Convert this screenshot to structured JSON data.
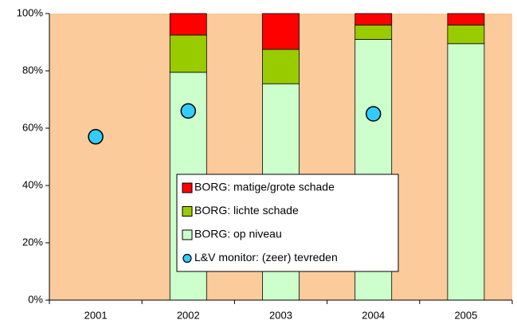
{
  "chart_data": {
    "type": "bar",
    "stacked": true,
    "categories": [
      "2001",
      "2002",
      "2003",
      "2004",
      "2005"
    ],
    "background": "#fbcb9b",
    "series": [
      {
        "name": "BORG: matige/grote schade",
        "type": "bar",
        "color": "#ff0000",
        "values": [
          null,
          7.5,
          12.5,
          4,
          4
        ]
      },
      {
        "name": "BORG: lichte schade",
        "type": "bar",
        "color": "#99cc00",
        "values": [
          null,
          13,
          12,
          5,
          6.5
        ]
      },
      {
        "name": "BORG: op niveau",
        "type": "bar",
        "color": "#ccffcc",
        "values": [
          null,
          79.5,
          75.5,
          91,
          89.5
        ]
      },
      {
        "name": "L&V monitor: (zeer) tevreden",
        "type": "scatter",
        "color": "#33ccff",
        "values": [
          57,
          66,
          null,
          65,
          null
        ]
      }
    ],
    "ylim": [
      0,
      100
    ],
    "yticks": [
      {
        "value": 0,
        "label": "0%"
      },
      {
        "value": 20,
        "label": "20%"
      },
      {
        "value": 40,
        "label": "40%"
      },
      {
        "value": 60,
        "label": "60%"
      },
      {
        "value": 80,
        "label": "80%"
      },
      {
        "value": 100,
        "label": "100%"
      }
    ]
  }
}
